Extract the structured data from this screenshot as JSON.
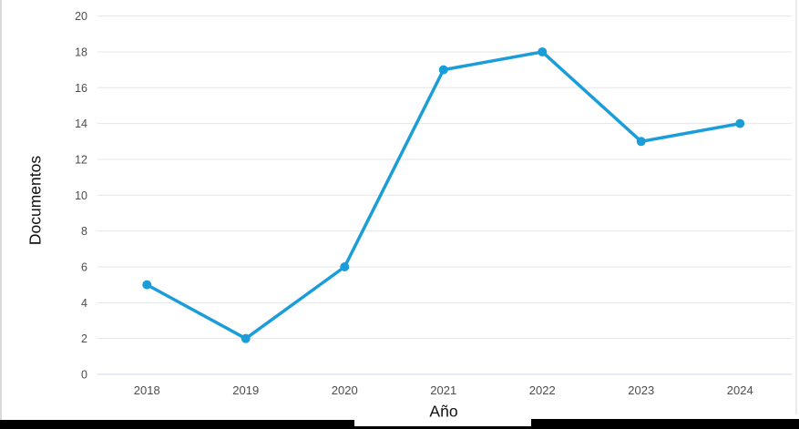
{
  "chart_data": {
    "type": "line",
    "title": "",
    "categories": [
      "2018",
      "2019",
      "2020",
      "2021",
      "2022",
      "2023",
      "2024"
    ],
    "values": [
      5,
      2,
      6,
      17,
      18,
      13,
      14
    ],
    "xlabel": "Año",
    "ylabel": "Documentos",
    "ylim": [
      0,
      20
    ],
    "ytick_step": 2,
    "grid": true,
    "legend": false,
    "colors": {
      "line": "#1B9DD9",
      "marker": "#1B9DD9",
      "gridline": "#E6E6E6",
      "axis_line": "#CCD6EB",
      "tick_label": "#4D4D4D",
      "axis_title": "#101010"
    }
  }
}
